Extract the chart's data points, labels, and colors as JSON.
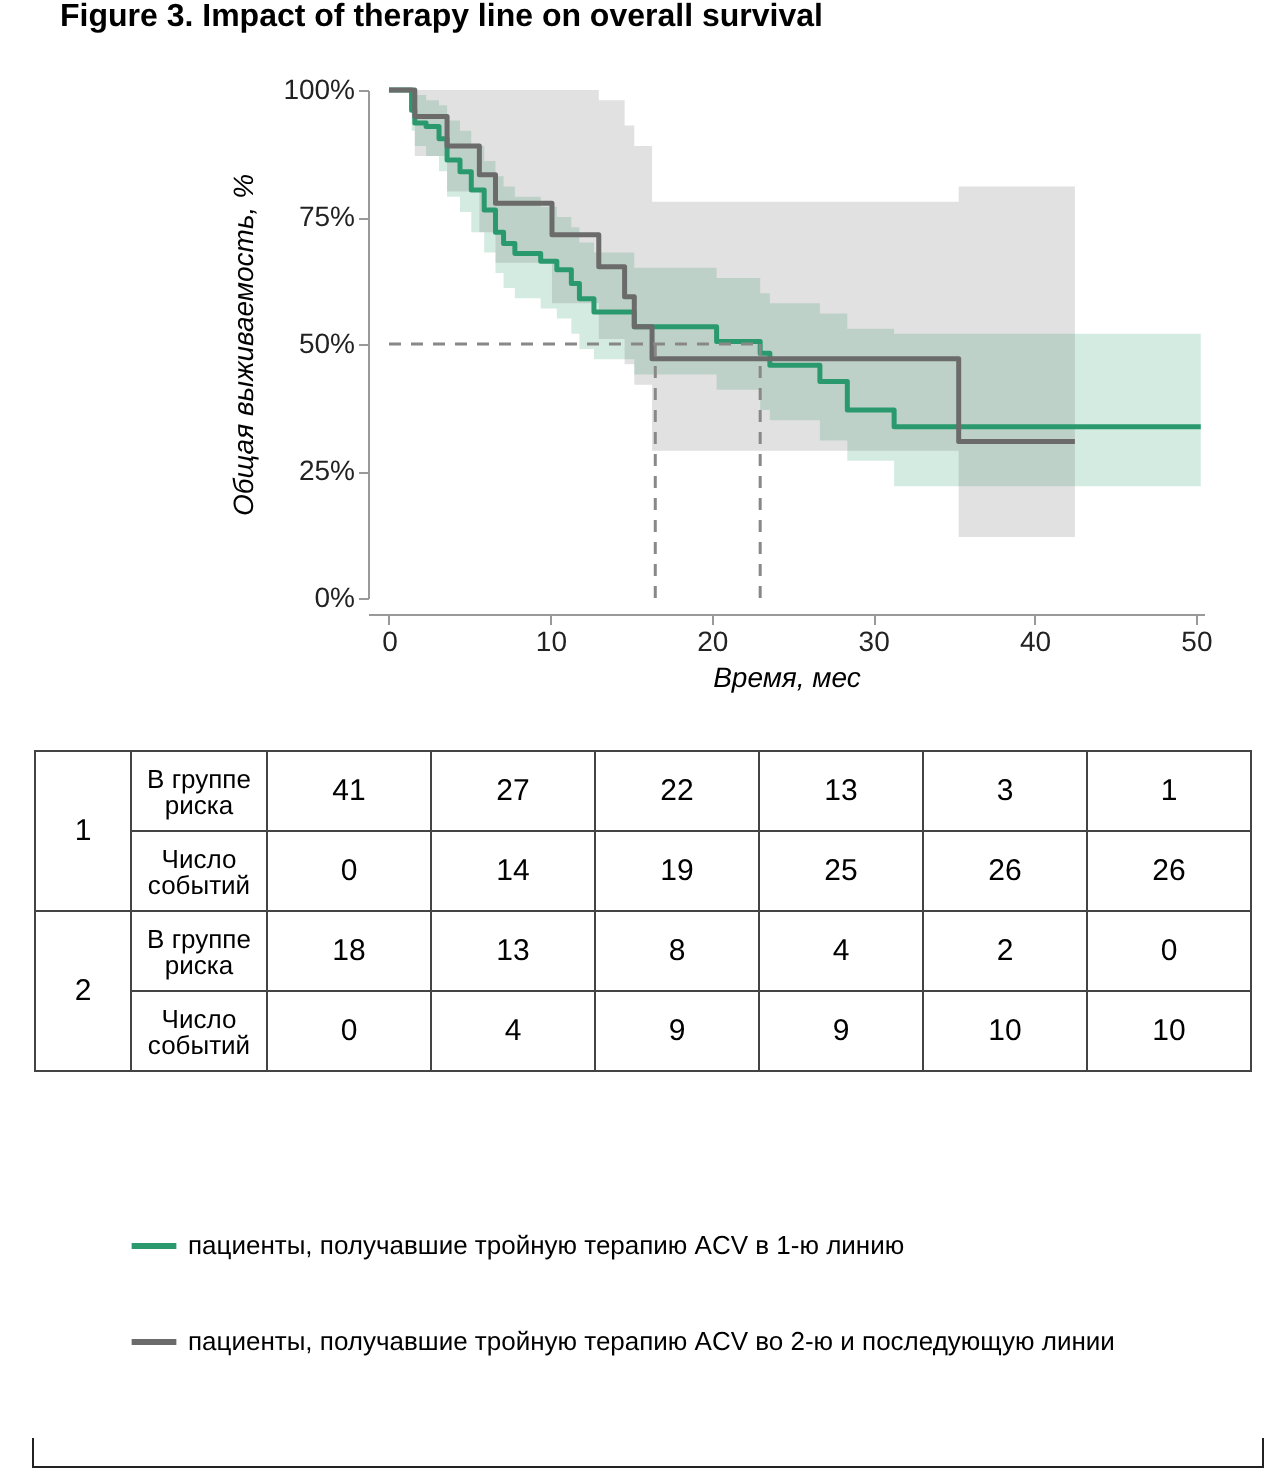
{
  "chart_data": [
    {
      "type": "step",
      "title": "Figure 3. Impact of therapy line on overall survival",
      "xlabel": "Время, мес",
      "ylabel": "Общая выживаемость, %",
      "xlim": [
        -1.3,
        50.5
      ],
      "xticks": [
        0,
        10,
        20,
        30,
        40,
        50
      ],
      "ylim": [
        0,
        100
      ],
      "yticks": [
        {
          "value": 0,
          "label": "0%"
        },
        {
          "value": 25,
          "label": "25%"
        },
        {
          "value": 50,
          "label": "50%"
        },
        {
          "value": 75,
          "label": "75%"
        },
        {
          "value": 100,
          "label": "100%"
        }
      ],
      "grid": false,
      "legend": "bottom",
      "line_style": "solid",
      "marker": "none",
      "ref_lines": [
        {
          "axis": "y",
          "value": 50,
          "color": "#888888",
          "line_style": "dashed"
        },
        {
          "axis": "x",
          "value": 16.5,
          "color": "#888888",
          "line_style": "dashed"
        },
        {
          "axis": "x",
          "value": 23,
          "color": "#888888",
          "line_style": "dashed"
        }
      ],
      "series": [
        {
          "name": "пациенты, получавшие тройную терапию ACV в 1-ю линию",
          "color": "#2a9a6e",
          "x": [
            0,
            1.4,
            1.6,
            2.3,
            3.1,
            3.6,
            4.4,
            5.1,
            5.9,
            6.6,
            7.1,
            7.8,
            9.4,
            10.4,
            11.3,
            11.8,
            12.7,
            15.2,
            20.3,
            23.0,
            23.6,
            26.7,
            28.4,
            31.3,
            50.3
          ],
          "values": [
            100,
            96,
            93.5,
            92.8,
            90.4,
            86.2,
            83.9,
            80.3,
            76.4,
            72,
            69.8,
            67.8,
            66.3,
            64.6,
            61.9,
            58.9,
            56.3,
            53.4,
            50.5,
            48.2,
            45.8,
            42.6,
            37,
            33.7,
            33.7
          ],
          "lower": [
            100,
            92,
            89,
            87,
            84,
            79,
            76,
            72,
            68,
            64,
            61,
            59,
            57,
            55,
            52,
            49,
            47,
            44,
            41,
            37,
            35,
            31,
            27,
            22,
            22
          ],
          "upper": [
            100,
            100,
            99,
            98,
            97,
            94,
            92,
            89,
            86,
            83,
            81,
            79,
            77,
            75,
            73,
            70,
            68,
            65,
            63,
            60,
            58,
            56,
            53,
            52,
            52
          ]
        },
        {
          "name": "пациенты, получавшие тройную терапию ACV во 2-ю и последующую линии",
          "color": "#6b6b6b",
          "x": [
            0,
            1.6,
            3.6,
            5.6,
            6.6,
            10.1,
            13.0,
            14.6,
            15.2,
            16.3,
            35.3,
            42.5
          ],
          "values": [
            100,
            94.8,
            89,
            83.3,
            77.7,
            71.5,
            65.2,
            59.3,
            53.4,
            47.1,
            30.8,
            30.8
          ],
          "lower": [
            100,
            87,
            80,
            72,
            66,
            58,
            51,
            46,
            42,
            29,
            12,
            12
          ],
          "upper": [
            100,
            100,
            100,
            100,
            100,
            100,
            98,
            93,
            89,
            78,
            81,
            81
          ]
        }
      ]
    },
    {
      "type": "other",
      "annotations": [
        "1",
        "В группе риска",
        "41",
        "27",
        "22",
        "13",
        "3",
        "1",
        "Число событий",
        "0",
        "14",
        "19",
        "25",
        "26",
        "26",
        "2",
        "В группе риска",
        "18",
        "13",
        "8",
        "4",
        "2",
        "0",
        "Число событий",
        "0",
        "4",
        "9",
        "9",
        "10",
        "10"
      ]
    }
  ]
}
